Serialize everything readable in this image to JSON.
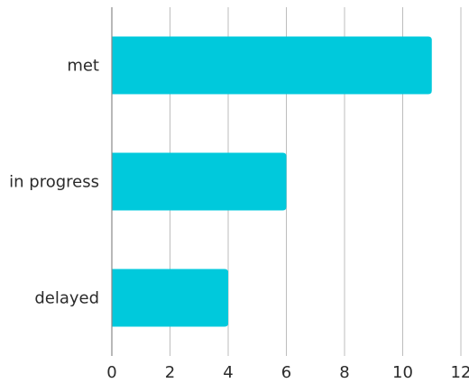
{
  "chart_data": {
    "type": "bar",
    "orientation": "horizontal",
    "categories": [
      "met",
      "in progress",
      "delayed"
    ],
    "values": [
      11,
      6,
      4
    ],
    "xlim": [
      0,
      12
    ],
    "x_ticks": [
      0,
      2,
      4,
      6,
      8,
      10,
      12
    ],
    "grid": "vertical",
    "bar_color": "#00C9DC",
    "title": "",
    "xlabel": "",
    "ylabel": ""
  }
}
